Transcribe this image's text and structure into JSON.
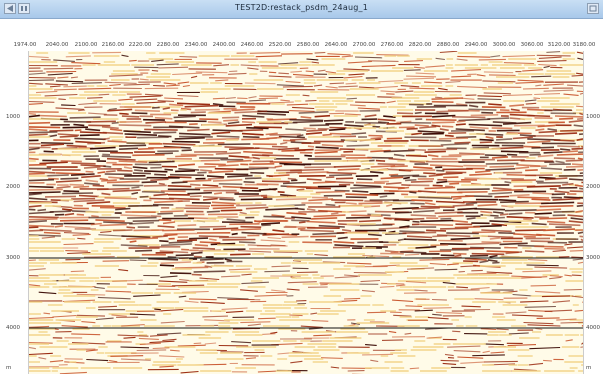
{
  "window": {
    "title": "TEST2D:restack_psdm_24aug_1",
    "left_icons": [
      "nav-back-icon",
      "pin-icon"
    ],
    "right_icon": "maximize-icon"
  },
  "seismic_section": {
    "x_axis_ticks": [
      "1974.00",
      "2040.00",
      "2100.00",
      "2160.00",
      "2220.00",
      "2280.00",
      "2340.00",
      "2400.00",
      "2460.00",
      "2520.00",
      "2580.00",
      "2640.00",
      "2700.00",
      "2760.00",
      "2820.00",
      "2880.00",
      "2940.00",
      "3000.00",
      "3060.00",
      "3120.00",
      "3180.00"
    ],
    "y_axis_ticks": [
      "1000",
      "2000",
      "3000",
      "4000",
      "m"
    ],
    "colors": {
      "positive": "#9a2a10",
      "peak": "#3a0a04",
      "negative": "#f3d58a",
      "background": "#fffbe8"
    }
  }
}
